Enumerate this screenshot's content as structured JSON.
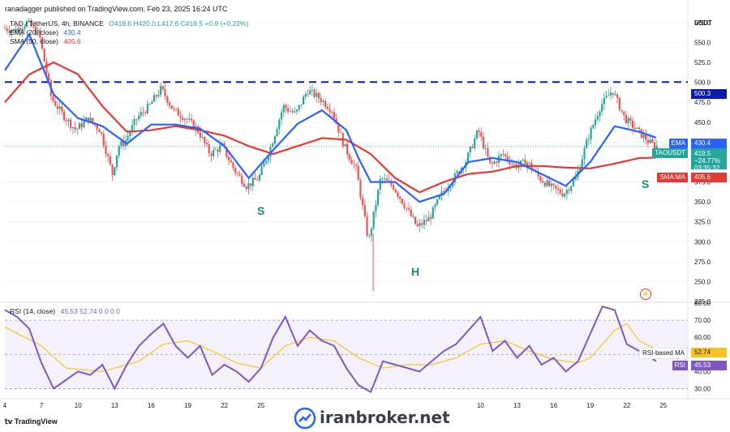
{
  "header": {
    "publisher_line": "ranadagger published on TradingView.com, Feb 23, 2025 16:24 UTC",
    "symbol": "TAO / TetherUS, 4h, BINANCE",
    "ohlc": "O418.6 H420.0 L417.6 C419.5 +0.9 (+0.22%)",
    "ema_label": "EMA (20, close)",
    "ema_value": "430.4",
    "sma_label": "SMA (50, close)",
    "sma_value": "405.6",
    "rsi_label": "RSI (14, close)",
    "rsi_values": "45.53  52.74  0  0  0  0"
  },
  "axis": {
    "currency": "USDT",
    "price_ticks": [
      "575.0",
      "550.0",
      "525.0",
      "500.0",
      "475.0",
      "450.0",
      "425.0",
      "400.0",
      "375.0",
      "350.0",
      "325.0",
      "300.0",
      "275.0",
      "250.0",
      "225.0"
    ],
    "rsi_ticks": [
      "80.00",
      "70.00",
      "60.00",
      "50.00",
      "40.00",
      "30.00"
    ],
    "x_ticks": [
      "4",
      "7",
      "10",
      "13",
      "16",
      "19",
      "22",
      "25",
      "10",
      "13",
      "16",
      "19",
      "22",
      "25"
    ]
  },
  "badges": {
    "resistance": "500.3",
    "ema_tag": "EMA",
    "ema_price": "430.4",
    "ticker": "TAOUSDT",
    "last_price": "419.5",
    "change": "−24.77%",
    "countdown": "03:35:32",
    "sma_tag": "SMA:MA",
    "sma_price": "405.6",
    "rsi_ma_tag": "RSI-based MA",
    "rsi_ma_value": "52.74",
    "rsi_tag": "RSI",
    "rsi_value": "45.53"
  },
  "annotations": {
    "left_shoulder": "S",
    "head": "H",
    "right_shoulder": "S"
  },
  "footer": {
    "tradingview": "TradingView",
    "brand": "iranbroker.net"
  },
  "colors": {
    "up": "#26a69a",
    "down": "#ef5350",
    "ema": "#2962ff",
    "sma": "#e53935",
    "rsi": "#7e57c2",
    "rsi_ma": "#f7c325",
    "dash": "#0d1ca8"
  },
  "chart_data": {
    "type": "candlestick",
    "timeframe": "4h",
    "y_range": [
      225,
      585
    ],
    "resistance_level": 500.3,
    "price_path": [
      [
        4,
        568
      ],
      [
        5,
        565
      ],
      [
        6,
        575
      ],
      [
        7,
        560
      ],
      [
        7.5,
        520
      ],
      [
        8,
        480
      ],
      [
        9,
        458
      ],
      [
        10,
        440
      ],
      [
        11,
        455
      ],
      [
        12,
        440
      ],
      [
        13,
        385
      ],
      [
        13.5,
        420
      ],
      [
        14,
        425
      ],
      [
        15,
        455
      ],
      [
        16,
        470
      ],
      [
        17,
        492
      ],
      [
        18,
        465
      ],
      [
        19,
        455
      ],
      [
        20,
        440
      ],
      [
        21,
        410
      ],
      [
        22,
        420
      ],
      [
        23,
        390
      ],
      [
        24,
        370
      ],
      [
        25,
        380
      ],
      [
        26,
        420
      ],
      [
        27,
        470
      ],
      [
        28,
        460
      ],
      [
        29,
        490
      ],
      [
        30,
        480
      ],
      [
        31,
        465
      ],
      [
        32,
        420
      ],
      [
        33,
        390
      ],
      [
        34,
        300
      ],
      [
        35,
        380
      ],
      [
        36,
        370
      ],
      [
        37,
        345
      ],
      [
        38,
        318
      ],
      [
        39,
        330
      ],
      [
        40,
        360
      ],
      [
        41,
        380
      ],
      [
        42,
        402
      ],
      [
        43,
        440
      ],
      [
        44,
        395
      ],
      [
        45,
        410
      ],
      [
        46,
        395
      ],
      [
        47,
        400
      ],
      [
        48,
        380
      ],
      [
        49,
        368
      ],
      [
        50,
        360
      ],
      [
        51,
        380
      ],
      [
        52,
        430
      ],
      [
        53,
        470
      ],
      [
        54,
        490
      ],
      [
        55,
        455
      ],
      [
        56,
        440
      ],
      [
        57,
        425
      ],
      [
        57.5,
        420
      ]
    ],
    "ema20_path": [
      [
        4,
        515
      ],
      [
        6,
        560
      ],
      [
        8,
        485
      ],
      [
        10,
        455
      ],
      [
        12,
        445
      ],
      [
        14,
        423
      ],
      [
        16,
        447
      ],
      [
        18,
        447
      ],
      [
        20,
        442
      ],
      [
        22,
        420
      ],
      [
        24,
        380
      ],
      [
        26,
        415
      ],
      [
        28,
        448
      ],
      [
        30,
        465
      ],
      [
        32,
        440
      ],
      [
        33,
        405
      ],
      [
        34,
        375
      ],
      [
        36,
        375
      ],
      [
        38,
        350
      ],
      [
        40,
        360
      ],
      [
        42,
        400
      ],
      [
        44,
        405
      ],
      [
        46,
        400
      ],
      [
        48,
        385
      ],
      [
        50,
        370
      ],
      [
        52,
        400
      ],
      [
        54,
        445
      ],
      [
        56,
        438
      ],
      [
        57.5,
        430
      ]
    ],
    "sma50_path": [
      [
        4,
        475
      ],
      [
        6,
        510
      ],
      [
        8,
        525
      ],
      [
        10,
        510
      ],
      [
        12,
        470
      ],
      [
        14,
        438
      ],
      [
        16,
        440
      ],
      [
        18,
        445
      ],
      [
        20,
        440
      ],
      [
        22,
        433
      ],
      [
        24,
        420
      ],
      [
        26,
        410
      ],
      [
        28,
        420
      ],
      [
        30,
        430
      ],
      [
        32,
        428
      ],
      [
        34,
        410
      ],
      [
        36,
        380
      ],
      [
        38,
        362
      ],
      [
        40,
        375
      ],
      [
        42,
        385
      ],
      [
        44,
        388
      ],
      [
        46,
        395
      ],
      [
        48,
        395
      ],
      [
        50,
        393
      ],
      [
        52,
        392
      ],
      [
        54,
        398
      ],
      [
        56,
        405
      ],
      [
        57.5,
        405.6
      ]
    ],
    "rsi_range": [
      25,
      80
    ],
    "rsi_path": [
      [
        4,
        76
      ],
      [
        5,
        72
      ],
      [
        6,
        65
      ],
      [
        7,
        45
      ],
      [
        8,
        30
      ],
      [
        9,
        35
      ],
      [
        10,
        40
      ],
      [
        11,
        38
      ],
      [
        12,
        44
      ],
      [
        13,
        30
      ],
      [
        14,
        44
      ],
      [
        15,
        55
      ],
      [
        16,
        62
      ],
      [
        17,
        68
      ],
      [
        18,
        55
      ],
      [
        19,
        48
      ],
      [
        20,
        55
      ],
      [
        21,
        38
      ],
      [
        22,
        44
      ],
      [
        23,
        40
      ],
      [
        24,
        34
      ],
      [
        25,
        42
      ],
      [
        26,
        60
      ],
      [
        27,
        72
      ],
      [
        28,
        55
      ],
      [
        29,
        64
      ],
      [
        30,
        58
      ],
      [
        31,
        55
      ],
      [
        32,
        42
      ],
      [
        33,
        32
      ],
      [
        34,
        28
      ],
      [
        35,
        46
      ],
      [
        36,
        44
      ],
      [
        37,
        42
      ],
      [
        38,
        40
      ],
      [
        39,
        46
      ],
      [
        40,
        52
      ],
      [
        41,
        56
      ],
      [
        42,
        64
      ],
      [
        43,
        72
      ],
      [
        44,
        52
      ],
      [
        45,
        58
      ],
      [
        46,
        48
      ],
      [
        47,
        55
      ],
      [
        48,
        44
      ],
      [
        49,
        48
      ],
      [
        50,
        40
      ],
      [
        51,
        46
      ],
      [
        52,
        62
      ],
      [
        53,
        78
      ],
      [
        54,
        76
      ],
      [
        55,
        56
      ],
      [
        56,
        52
      ],
      [
        57,
        48
      ],
      [
        57.5,
        45.5
      ]
    ],
    "rsi_ma_path": [
      [
        4,
        66
      ],
      [
        7,
        55
      ],
      [
        9,
        42
      ],
      [
        12,
        40
      ],
      [
        15,
        46
      ],
      [
        17,
        56
      ],
      [
        19,
        58
      ],
      [
        21,
        52
      ],
      [
        23,
        45
      ],
      [
        25,
        42
      ],
      [
        27,
        55
      ],
      [
        29,
        60
      ],
      [
        31,
        58
      ],
      [
        33,
        48
      ],
      [
        35,
        42
      ],
      [
        37,
        44
      ],
      [
        39,
        44
      ],
      [
        41,
        48
      ],
      [
        43,
        56
      ],
      [
        45,
        58
      ],
      [
        47,
        52
      ],
      [
        49,
        47
      ],
      [
        51,
        45
      ],
      [
        52,
        48
      ],
      [
        54,
        64
      ],
      [
        55,
        68
      ],
      [
        56,
        58
      ],
      [
        57.5,
        52.7
      ]
    ]
  }
}
